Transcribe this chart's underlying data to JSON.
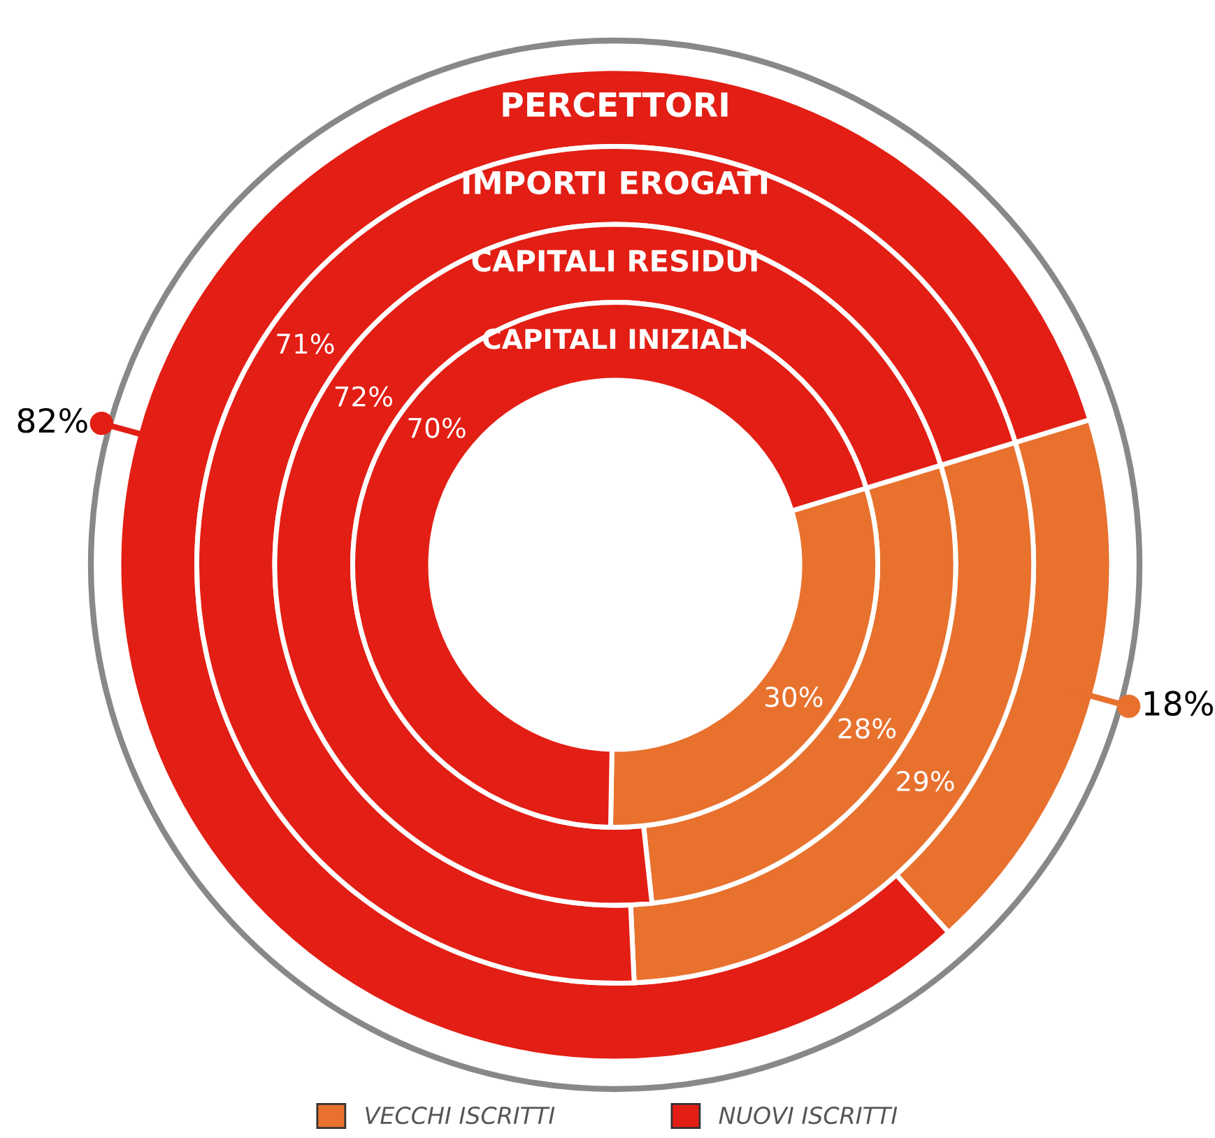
{
  "chart_data": {
    "type": "donut",
    "categories": [
      "VECCHI ISCRITTI",
      "NUOVI ISCRITTI"
    ],
    "colors": [
      "#e8712e",
      "#e31e14"
    ],
    "series": [
      {
        "name": "PERCETTORI",
        "values": [
          18,
          82
        ],
        "value_labels": [
          "18%",
          "82%"
        ]
      },
      {
        "name": "IMPORTI EROGATI",
        "values": [
          29,
          71
        ],
        "value_labels": [
          "29%",
          "71%"
        ]
      },
      {
        "name": "CAPITALI RESIDUI",
        "values": [
          28,
          72
        ],
        "value_labels": [
          "28%",
          "72%"
        ]
      },
      {
        "name": "CAPITALI INIZIALI",
        "values": [
          30,
          70
        ],
        "value_labels": [
          "30%",
          "70%"
        ]
      }
    ],
    "legend": "bottom"
  }
}
